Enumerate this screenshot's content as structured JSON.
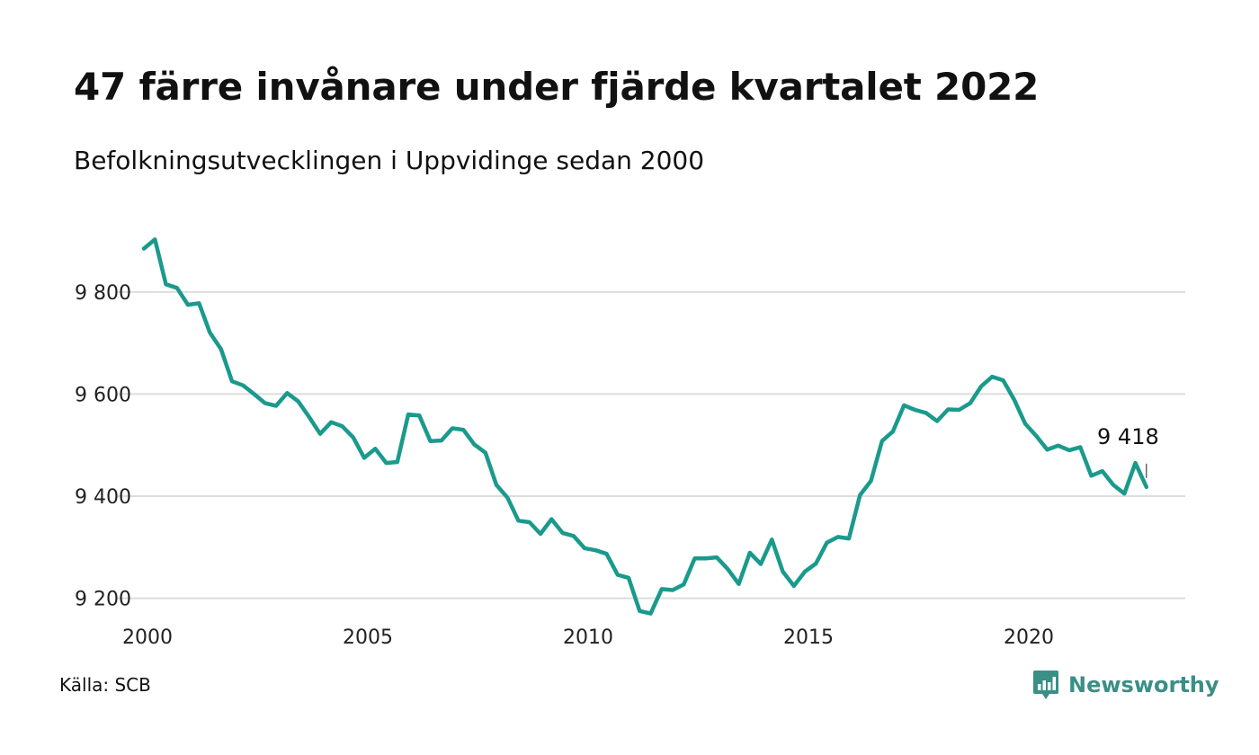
{
  "header": {
    "title": "47 färre invånare under fjärde kvartalet 2022",
    "subtitle": "Befolkningsutvecklingen i Uppvidinge sedan 2000"
  },
  "footer": {
    "source": "Källa: SCB",
    "brand": "Newsworthy"
  },
  "colors": {
    "line": "#1a9a8c",
    "grid": "#dddddd",
    "brand": "#3a8f86"
  },
  "icons": {
    "brand": "newsworthy-logo-icon"
  },
  "chart_data": {
    "type": "line",
    "grid": true,
    "x_start_year": 2000,
    "x_step_per_point": 0.25,
    "xlim": [
      2000,
      2023.25
    ],
    "ylim": [
      9120,
      9960
    ],
    "x_ticks": [
      2000,
      2005,
      2010,
      2015,
      2020
    ],
    "y_ticks": [
      9200,
      9400,
      9600,
      9800
    ],
    "y_tick_labels": [
      "9 200",
      "9 400",
      "9 600",
      "9 800"
    ],
    "end_label": "9 418",
    "series": [
      {
        "values": [
          9885,
          9903,
          9815,
          9808,
          9775,
          9778,
          9720,
          9688,
          9625,
          9617,
          9600,
          9582,
          9577,
          9602,
          9586,
          9555,
          9522,
          9545,
          9537,
          9515,
          9475,
          9493,
          9465,
          9467,
          9560,
          9558,
          9508,
          9509,
          9533,
          9530,
          9501,
          9485,
          9422,
          9397,
          9352,
          9349,
          9326,
          9355,
          9328,
          9322,
          9298,
          9294,
          9287,
          9246,
          9240,
          9175,
          9170,
          9218,
          9216,
          9227,
          9278,
          9278,
          9280,
          9257,
          9228,
          9289,
          9267,
          9315,
          9252,
          9224,
          9252,
          9268,
          9309,
          9320,
          9317,
          9402,
          9430,
          9508,
          9527,
          9578,
          9569,
          9563,
          9547,
          9570,
          9569,
          9582,
          9615,
          9634,
          9627,
          9589,
          9542,
          9518,
          9491,
          9499,
          9490,
          9496,
          9440,
          9449,
          9422,
          9405,
          9465,
          9418
        ]
      }
    ]
  }
}
